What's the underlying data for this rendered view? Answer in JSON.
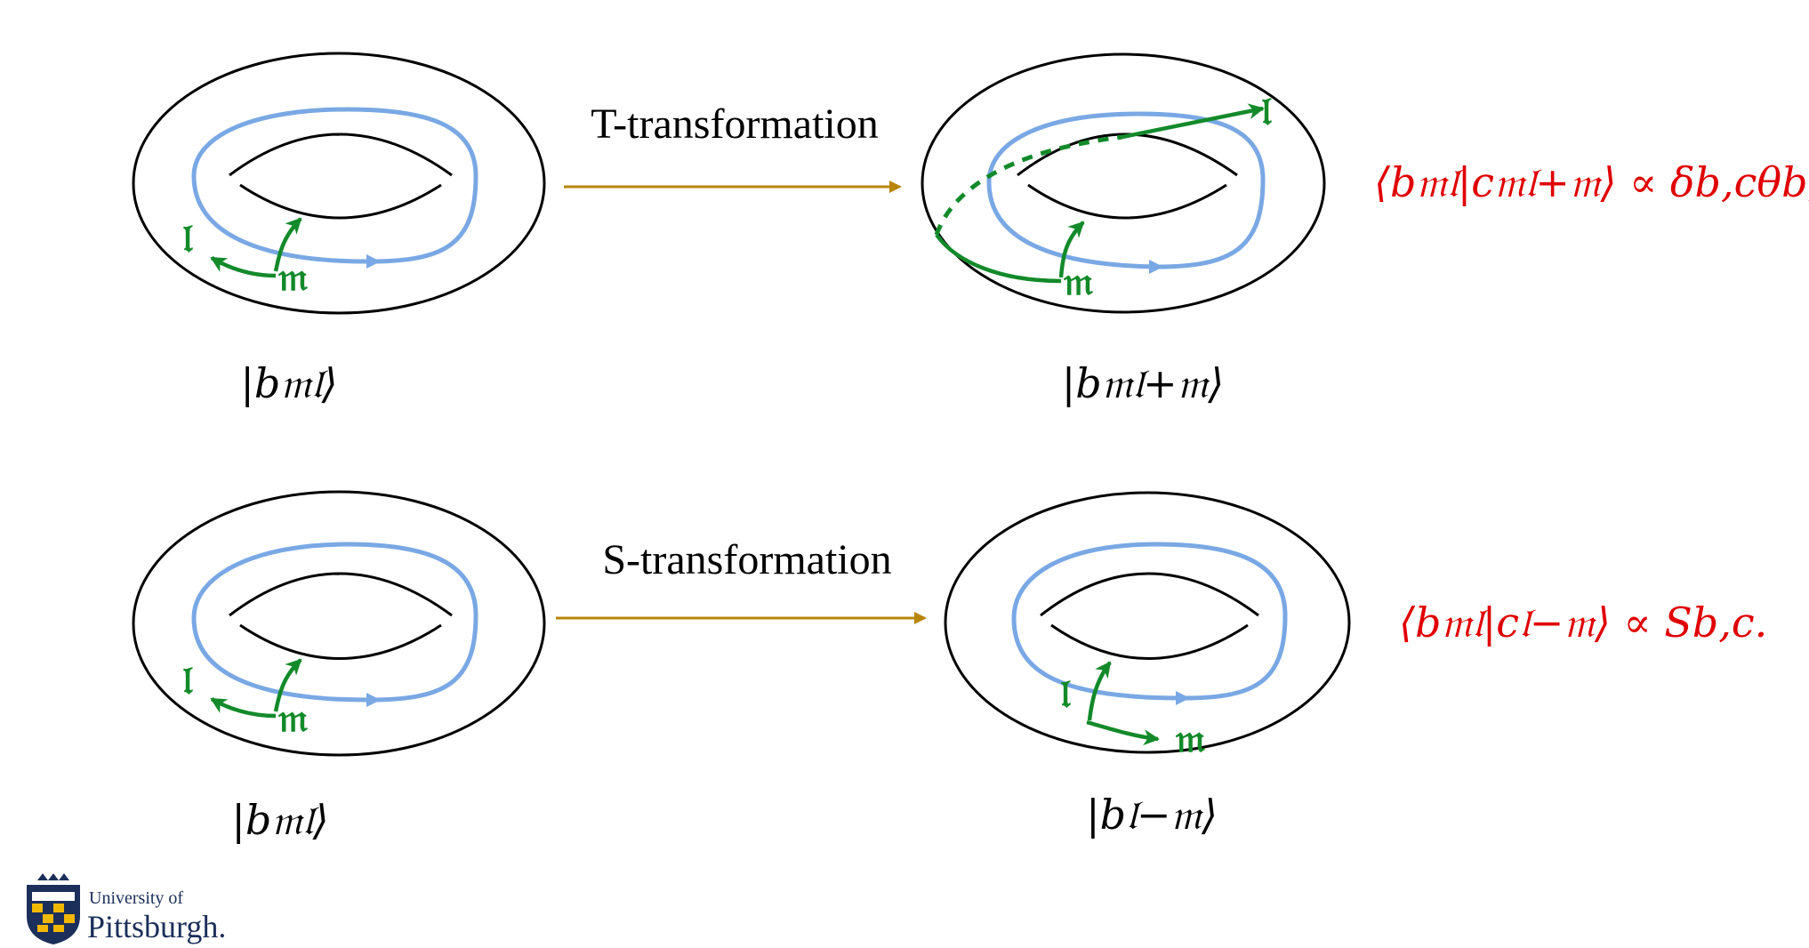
{
  "transformations": {
    "t_label": "T-transformation",
    "s_label": "S-transformation"
  },
  "states": {
    "top_left": "|b𝔪𝔩⟩",
    "top_right": "|b𝔪𝔩+𝔪⟩",
    "bottom_left": "|b𝔪𝔩⟩",
    "bottom_right": "|b𝔩−𝔪⟩"
  },
  "cycle_labels": {
    "l": "𝔩",
    "m": "𝔪"
  },
  "formulas": {
    "t_formula": "⟨b𝔪𝔩|c𝔪𝔩+𝔪⟩ ∝ δb,cθb,",
    "s_formula": "⟨b𝔪𝔩|c𝔩−𝔪⟩ ∝ Sb,c."
  },
  "logo": {
    "line1": "University of",
    "line2": "Pittsburgh."
  },
  "colors": {
    "blue_loop": "#79a8e4",
    "green_cycle": "#138a2a",
    "arrow": "#b8860b",
    "formula": "#e00000"
  }
}
